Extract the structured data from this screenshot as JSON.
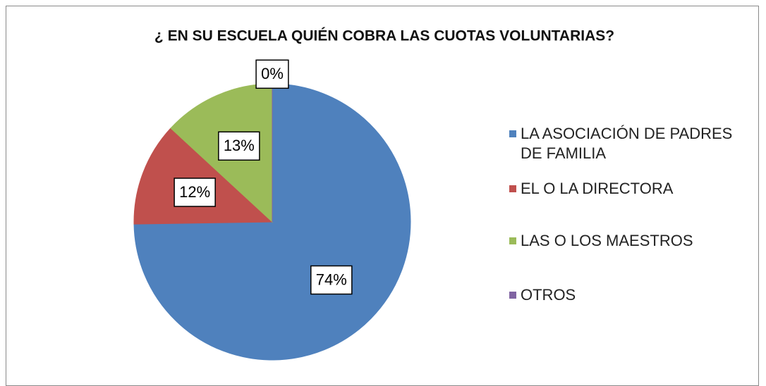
{
  "chart_data": {
    "type": "pie",
    "title": "¿ EN SU ESCUELA QUIÉN COBRA  LAS CUOTAS VOLUNTARIAS?",
    "categories": [
      "LA ASOCIACIÓN DE PADRES DE FAMILIA",
      "EL O LA DIRECTORA",
      "LAS O LOS MAESTROS",
      "OTROS"
    ],
    "values": [
      74,
      12,
      13,
      0
    ],
    "value_labels": [
      "74%",
      "12%",
      "13%",
      "0%"
    ],
    "colors": [
      "#4f81bd",
      "#c0504d",
      "#9bbb59",
      "#8064a2"
    ],
    "legend": "right"
  }
}
